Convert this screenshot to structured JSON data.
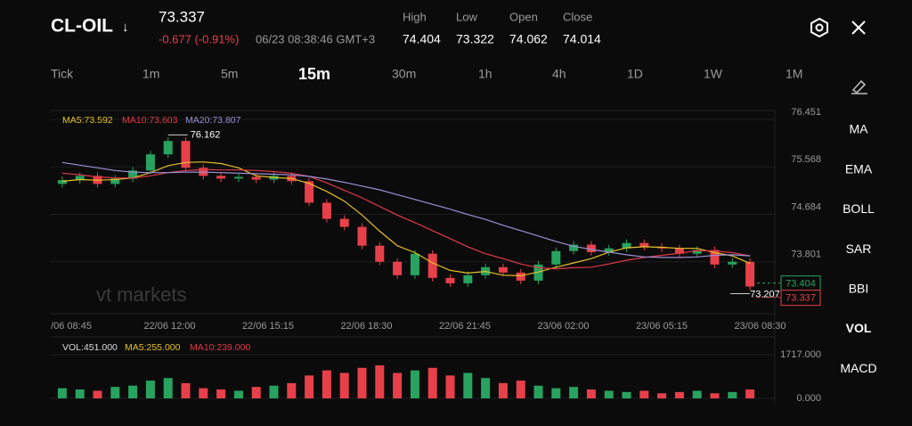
{
  "header": {
    "symbol": "CL-OIL",
    "arrow": "↓",
    "price": "73.337",
    "change": "-0.677 (-0.91%)",
    "time": "06/23 08:38:46 GMT+3",
    "stats": [
      {
        "label": "High",
        "value": "74.404"
      },
      {
        "label": "Low",
        "value": "73.322"
      },
      {
        "label": "Open",
        "value": "74.062"
      },
      {
        "label": "Close",
        "value": "74.014"
      }
    ]
  },
  "timeframes": [
    "Tick",
    "1m",
    "5m",
    "15m",
    "30m",
    "1h",
    "4h",
    "1D",
    "1W",
    "1M"
  ],
  "indicators": [
    "MA",
    "EMA",
    "BOLL",
    "SAR",
    "BBI",
    "VOL",
    "MACD"
  ],
  "chart": {
    "watermark": "vt markets",
    "ma_legend": [
      "MA5:73.592",
      "MA10:73.603",
      "MA20:73.807"
    ],
    "vol_legend": [
      "VOL:451.000",
      "MA5:255.000",
      "MA10:239.000"
    ],
    "ylim": [
      72.95,
      76.6
    ],
    "yticks": [
      76.451,
      75.568,
      74.684,
      73.801
    ],
    "time_labels": [
      "/06 08:45",
      "22/06 12:00",
      "22/06 15:15",
      "22/06 18:30",
      "22/06 21:45",
      "23/06 02:00",
      "23/06 05:15",
      "23/06 08:30"
    ],
    "open": [
      75.25,
      75.32,
      75.4,
      75.25,
      75.35,
      75.5,
      75.8,
      76.05,
      75.55,
      75.4,
      75.35,
      75.38,
      75.33,
      75.4,
      75.3,
      74.9,
      74.6,
      74.45,
      74.1,
      73.8,
      73.55,
      73.95,
      73.5,
      73.4,
      73.55,
      73.7,
      73.6,
      73.45,
      73.75,
      74.0,
      74.12,
      73.98,
      74.05,
      74.15,
      74.08,
      74.05,
      73.95,
      74.02,
      73.75,
      73.8
    ],
    "close": [
      75.32,
      75.4,
      75.25,
      75.35,
      75.5,
      75.8,
      76.05,
      75.55,
      75.4,
      75.35,
      75.38,
      75.33,
      75.4,
      75.3,
      74.9,
      74.6,
      74.45,
      74.1,
      73.8,
      73.55,
      73.95,
      73.5,
      73.4,
      73.55,
      73.7,
      73.6,
      73.45,
      73.75,
      74.0,
      74.12,
      73.98,
      74.05,
      74.15,
      74.08,
      74.05,
      73.95,
      74.02,
      73.75,
      73.8,
      73.34
    ],
    "ma5": [
      75.3,
      75.33,
      75.32,
      75.33,
      75.36,
      75.46,
      75.59,
      75.65,
      75.66,
      75.63,
      75.55,
      75.4,
      75.37,
      75.35,
      75.26,
      75.11,
      74.93,
      74.67,
      74.37,
      74.1,
      73.97,
      73.78,
      73.64,
      73.59,
      73.62,
      73.55,
      73.54,
      73.61,
      73.7,
      73.78,
      73.86,
      73.98,
      74.06,
      74.08,
      74.07,
      74.05,
      74.05,
      73.97,
      73.91,
      73.77
    ],
    "ma10": [
      75.45,
      75.42,
      75.38,
      75.36,
      75.36,
      75.4,
      75.46,
      75.5,
      75.52,
      75.51,
      75.51,
      75.5,
      75.48,
      75.45,
      75.39,
      75.27,
      75.13,
      74.99,
      74.83,
      74.67,
      74.53,
      74.38,
      74.23,
      74.08,
      73.95,
      73.86,
      73.76,
      73.69,
      73.67,
      73.69,
      73.7,
      73.76,
      73.83,
      73.88,
      73.92,
      73.96,
      74.01,
      74.0,
      73.97,
      73.91
    ],
    "ma20": [
      75.65,
      75.6,
      75.55,
      75.5,
      75.47,
      75.46,
      75.46,
      75.47,
      75.47,
      75.46,
      75.45,
      75.44,
      75.43,
      75.42,
      75.39,
      75.34,
      75.28,
      75.21,
      75.14,
      75.05,
      74.96,
      74.87,
      74.78,
      74.68,
      74.59,
      74.48,
      74.38,
      74.28,
      74.18,
      74.09,
      74.03,
      73.98,
      73.93,
      73.89,
      73.88,
      73.88,
      73.89,
      73.92,
      73.93,
      73.91
    ],
    "high_mark": 76.162,
    "low_mark": 73.207,
    "price_tags": [
      73.404,
      73.337
    ],
    "volume": [
      400,
      350,
      300,
      450,
      500,
      700,
      800,
      600,
      400,
      350,
      300,
      450,
      500,
      600,
      900,
      1100,
      1000,
      1200,
      1300,
      1000,
      1100,
      1200,
      900,
      1000,
      800,
      600,
      700,
      500,
      400,
      450,
      350,
      300,
      250,
      300,
      200,
      250,
      300,
      200,
      250,
      350
    ],
    "vlim": [
      0,
      1717
    ],
    "vticks": [
      {
        "value": 1717,
        "label": "1717.000"
      },
      {
        "value": 0,
        "label": "0.000"
      }
    ]
  }
}
